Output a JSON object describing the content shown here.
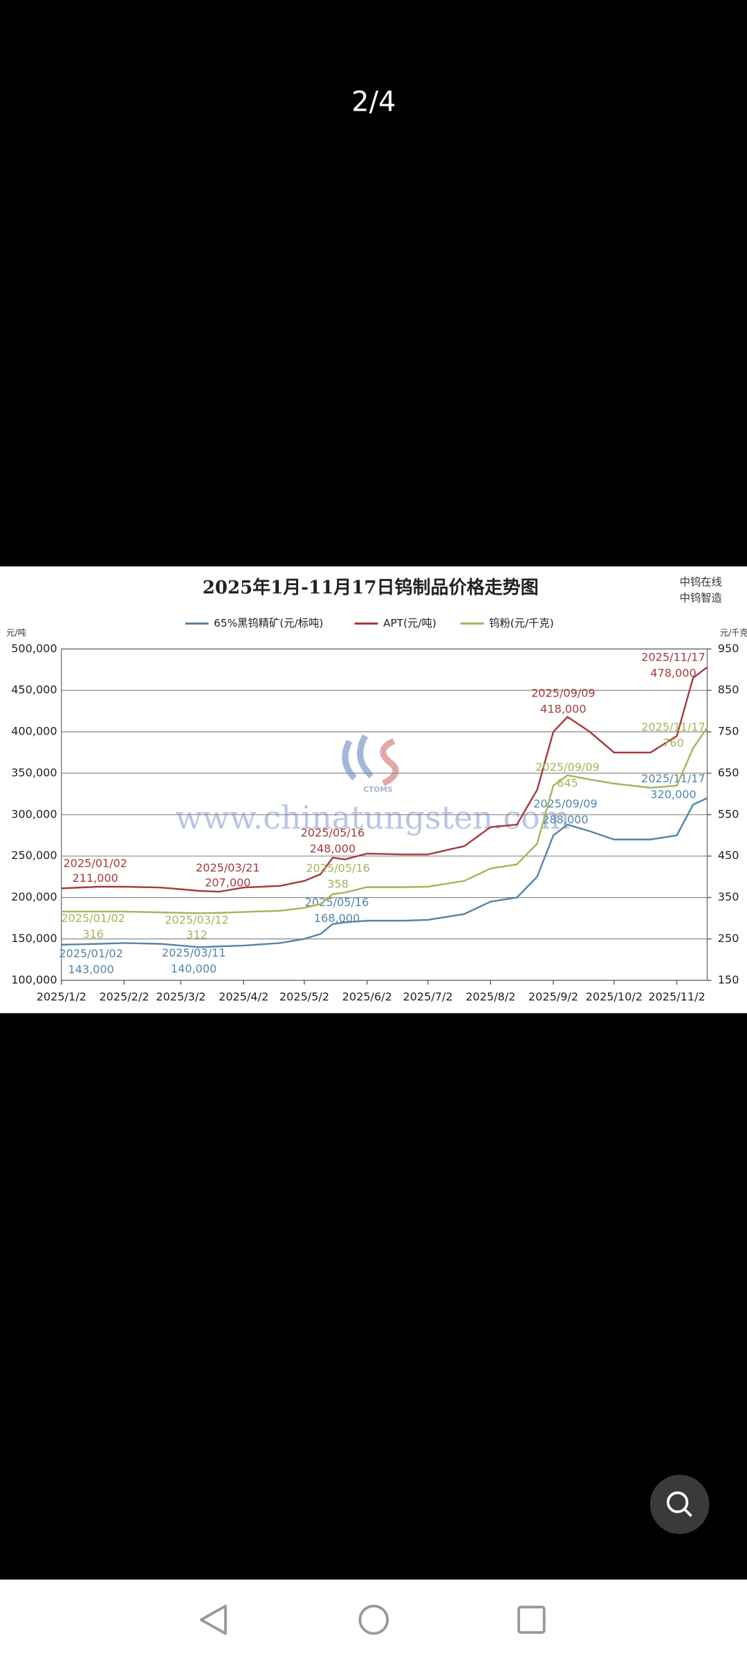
{
  "counter": "2/4",
  "chart_data": {
    "type": "line",
    "title": "2025年1月-11月17日钨制品价格走势图",
    "brand": [
      "中钨在线",
      "中钨智造"
    ],
    "watermark": "www.chinatungsten.com",
    "watermark_logo": "CTOMS",
    "ylabel": "元/吨",
    "y2label": "元/千克",
    "x": [
      "2025-01-02",
      "2025-01-20",
      "2025-02-02",
      "2025-02-20",
      "2025-03-02",
      "2025-03-11",
      "2025-03-21",
      "2025-04-02",
      "2025-04-20",
      "2025-05-02",
      "2025-05-10",
      "2025-05-16",
      "2025-05-22",
      "2025-06-02",
      "2025-06-20",
      "2025-07-02",
      "2025-07-20",
      "2025-08-02",
      "2025-08-15",
      "2025-08-25",
      "2025-09-02",
      "2025-09-09",
      "2025-09-20",
      "2025-10-02",
      "2025-10-20",
      "2025-11-02",
      "2025-11-10",
      "2025-11-17"
    ],
    "xlim": [
      "2025-01-02",
      "2025-11-17"
    ],
    "xticks": [
      {
        "value": "2025-01-02",
        "label": "2025/1/2"
      },
      {
        "value": "2025-02-02",
        "label": "2025/2/2"
      },
      {
        "value": "2025-03-02",
        "label": "2025/3/2"
      },
      {
        "value": "2025-04-02",
        "label": "2025/4/2"
      },
      {
        "value": "2025-05-02",
        "label": "2025/5/2"
      },
      {
        "value": "2025-06-02",
        "label": "2025/6/2"
      },
      {
        "value": "2025-07-02",
        "label": "2025/7/2"
      },
      {
        "value": "2025-08-02",
        "label": "2025/8/2"
      },
      {
        "value": "2025-09-02",
        "label": "2025/9/2"
      },
      {
        "value": "2025-10-02",
        "label": "2025/10/2"
      },
      {
        "value": "2025-11-02",
        "label": "2025/11/2"
      }
    ],
    "ylim": [
      100000,
      500000
    ],
    "yticks": [
      {
        "value": 100000,
        "label": "100,000"
      },
      {
        "value": 150000,
        "label": "150,000"
      },
      {
        "value": 200000,
        "label": "200,000"
      },
      {
        "value": 250000,
        "label": "250,000"
      },
      {
        "value": 300000,
        "label": "300,000"
      },
      {
        "value": 350000,
        "label": "350,000"
      },
      {
        "value": 400000,
        "label": "400,000"
      },
      {
        "value": 450000,
        "label": "450,000"
      },
      {
        "value": 500000,
        "label": "500,000"
      }
    ],
    "y2lim": [
      150,
      950
    ],
    "y2ticks": [
      150,
      250,
      350,
      450,
      550,
      650,
      750,
      850,
      950
    ],
    "grid": true,
    "legend": "top",
    "series": [
      {
        "name": "65%黑钨精矿(元/标吨)",
        "color": "#5485a8",
        "axis": "y",
        "values": [
          143000,
          144000,
          145000,
          144000,
          142000,
          140000,
          141000,
          142000,
          145000,
          150000,
          156000,
          168000,
          170000,
          172000,
          172000,
          173000,
          180000,
          195000,
          200000,
          225000,
          275000,
          288000,
          280000,
          270000,
          270000,
          275000,
          312000,
          320000
        ],
        "annotations": [
          {
            "x": "2025-01-02",
            "value": 143000,
            "label": "2025/01/02",
            "value_label": "143,000"
          },
          {
            "x": "2025-03-11",
            "value": 140000,
            "label": "2025/03/11",
            "value_label": "140,000"
          },
          {
            "x": "2025-05-16",
            "value": 168000,
            "label": "2025/05/16",
            "value_label": "168,000"
          },
          {
            "x": "2025-09-09",
            "value": 288000,
            "label": "2025/09/09",
            "value_label": "288,000"
          },
          {
            "x": "2025-11-17",
            "value": 320000,
            "label": "2025/11/17",
            "value_label": "320,000"
          }
        ]
      },
      {
        "name": "APT(元/吨)",
        "color": "#a33b3c",
        "axis": "y",
        "values": [
          211000,
          213000,
          213000,
          212000,
          210000,
          208000,
          207000,
          212000,
          214000,
          220000,
          228000,
          248000,
          246000,
          253000,
          252000,
          252000,
          262000,
          285000,
          288000,
          330000,
          400000,
          418000,
          400000,
          375000,
          375000,
          395000,
          465000,
          478000
        ],
        "annotations": [
          {
            "x": "2025-01-02",
            "value": 211000,
            "label": "2025/01/02",
            "value_label": "211,000"
          },
          {
            "x": "2025-03-21",
            "value": 207000,
            "label": "2025/03/21",
            "value_label": "207,000"
          },
          {
            "x": "2025-05-16",
            "value": 248000,
            "label": "2025/05/16",
            "value_label": "248,000"
          },
          {
            "x": "2025-09-09",
            "value": 418000,
            "label": "2025/09/09",
            "value_label": "418,000"
          },
          {
            "x": "2025-11-17",
            "value": 478000,
            "label": "2025/11/17",
            "value_label": "478,000"
          }
        ]
      },
      {
        "name": "钨粉(元/千克)",
        "color": "#a5b55a",
        "axis": "y2",
        "values": [
          316,
          316,
          316,
          314,
          313,
          312,
          313,
          315,
          318,
          325,
          334,
          358,
          362,
          375,
          375,
          376,
          390,
          420,
          430,
          480,
          620,
          645,
          635,
          625,
          615,
          620,
          710,
          760
        ],
        "annotations": [
          {
            "x": "2025-01-02",
            "value": 316,
            "label": "2025/01/02",
            "value_label": "316"
          },
          {
            "x": "2025-03-12",
            "value": 312,
            "label": "2025/03/12",
            "value_label": "312"
          },
          {
            "x": "2025-05-16",
            "value": 358,
            "label": "2025/05/16",
            "value_label": "358"
          },
          {
            "x": "2025-09-09",
            "value": 645,
            "label": "2025/09/09",
            "value_label": "645"
          },
          {
            "x": "2025-11-17",
            "value": 760,
            "label": "2025/11/17",
            "value_label": "760"
          }
        ]
      }
    ]
  }
}
